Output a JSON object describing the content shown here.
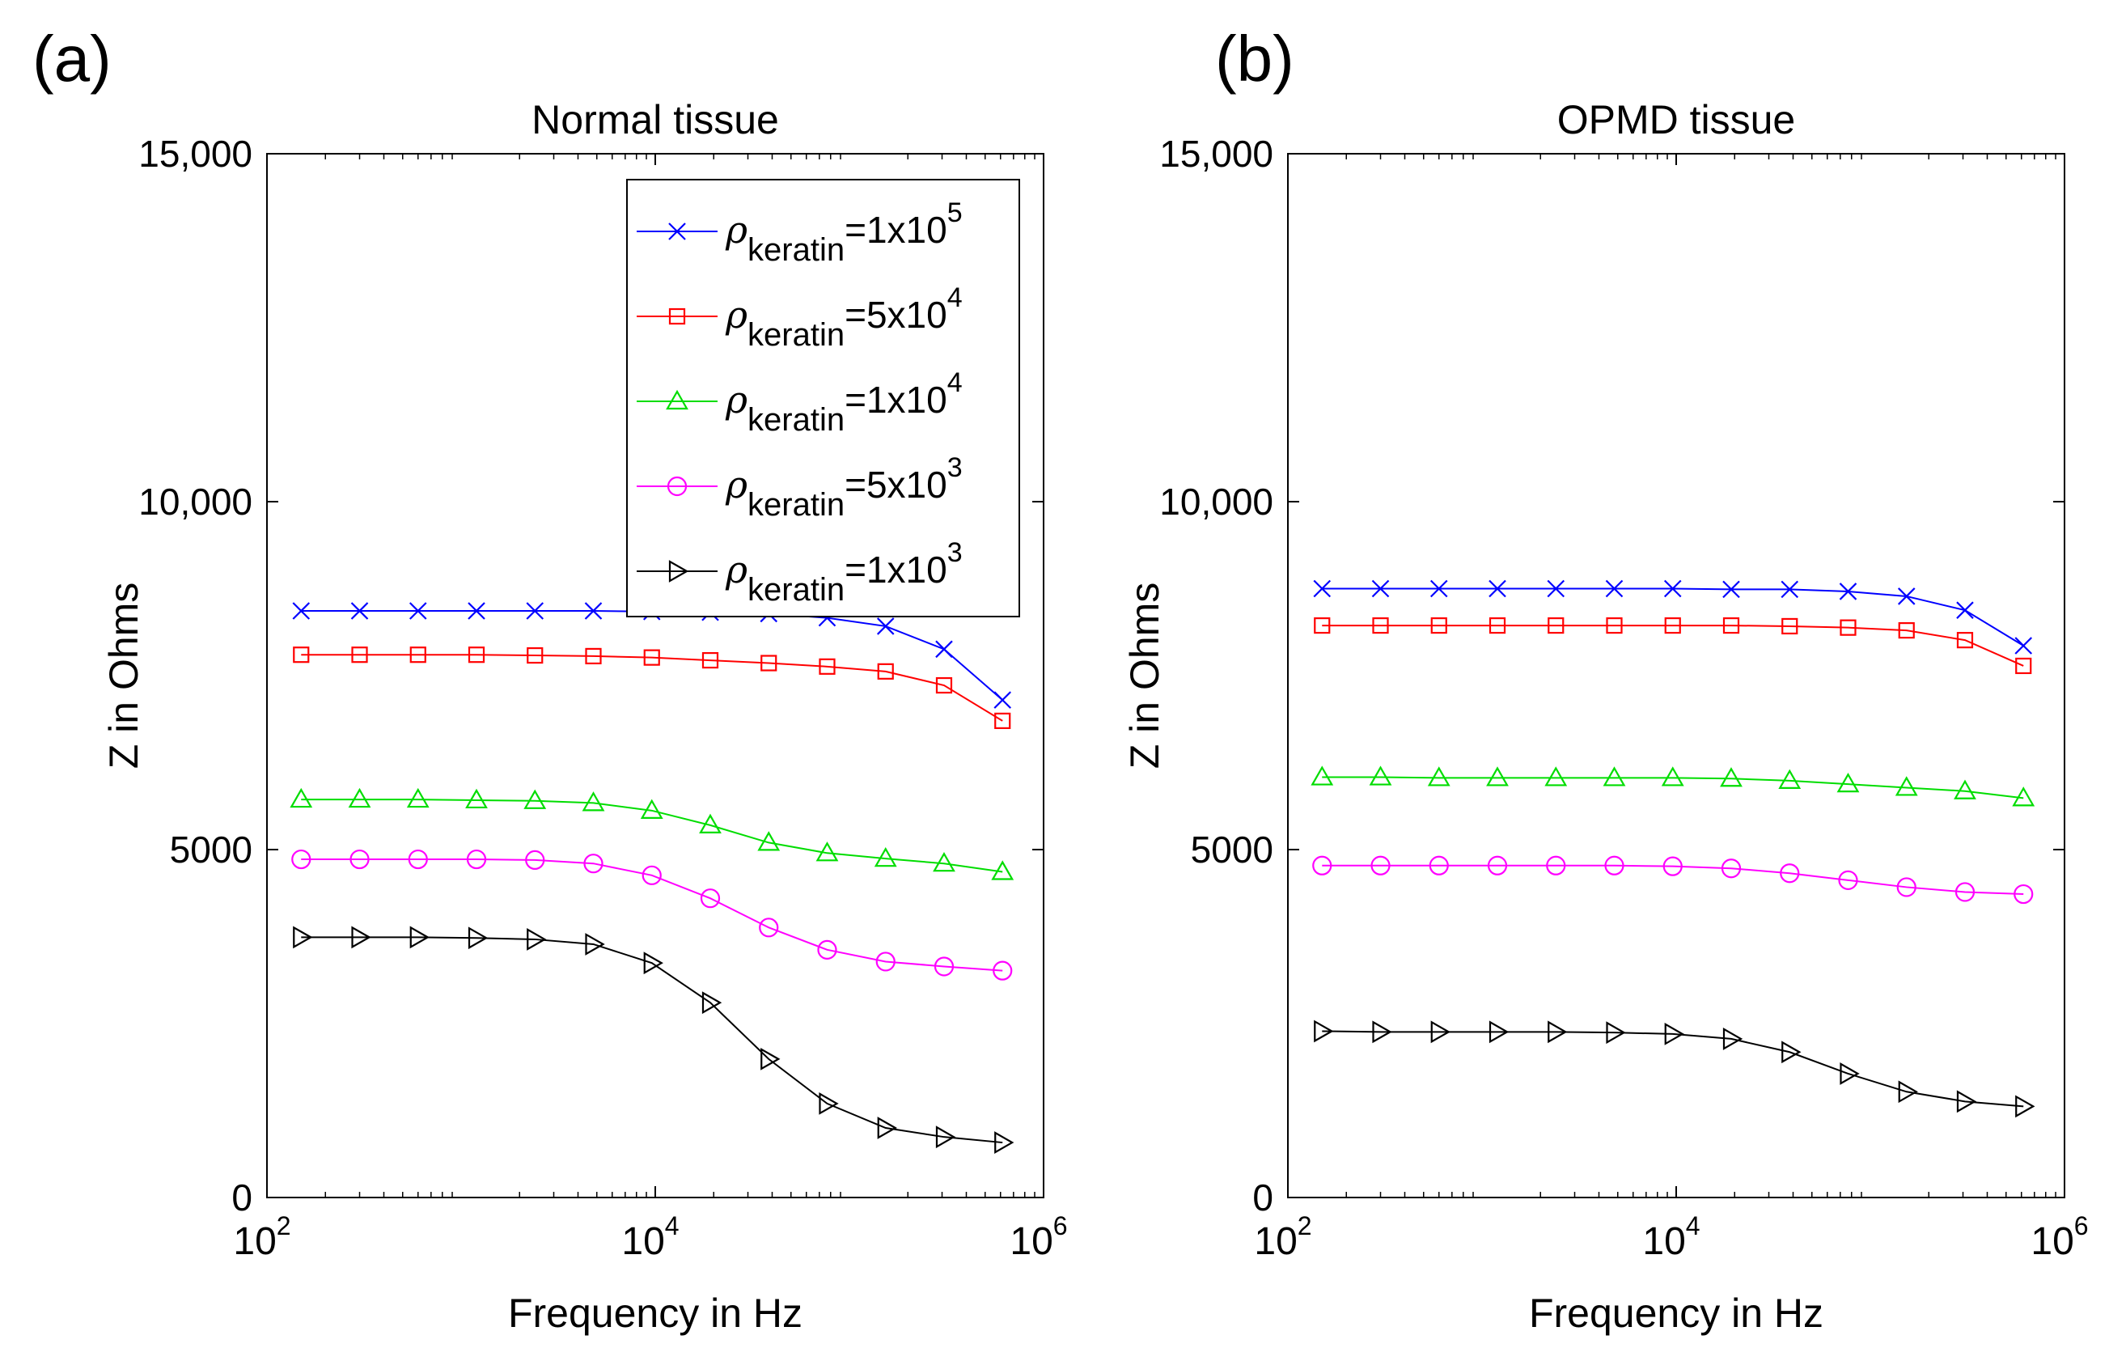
{
  "chart_data": [
    {
      "type": "line",
      "panel_label": "(a)",
      "title": "Normal tissue",
      "xlabel": "Frequency in Hz",
      "ylabel": "Z in Ohms",
      "xscale": "log",
      "xlim": [
        100,
        1000000
      ],
      "ylim": [
        0,
        15000
      ],
      "xticks": [
        {
          "value": 100,
          "base": "10",
          "exp": "2"
        },
        {
          "value": 10000,
          "base": "10",
          "exp": "4"
        },
        {
          "value": 1000000,
          "base": "10",
          "exp": "6"
        }
      ],
      "yticks": [
        {
          "value": 0,
          "label": "0"
        },
        {
          "value": 5000,
          "label": "5000"
        },
        {
          "value": 10000,
          "label": "10,000"
        },
        {
          "value": 15000,
          "label": "15,000"
        }
      ],
      "legend_position": "top-right",
      "x": [
        150,
        300,
        600,
        1200,
        2400,
        4800,
        9600,
        19200,
        38400,
        76800,
        153600,
        307200,
        614400
      ],
      "series": [
        {
          "name": "ρkeratin=1x10^5",
          "symbol": "ρ",
          "subscript": "keratin",
          "text": "=1x10",
          "superscript": "5",
          "color": "#0000ff",
          "marker": "x",
          "values": [
            8430,
            8430,
            8430,
            8430,
            8430,
            8430,
            8420,
            8410,
            8390,
            8330,
            8210,
            7880,
            7150
          ]
        },
        {
          "name": "ρkeratin=5x10^4",
          "symbol": "ρ",
          "subscript": "keratin",
          "text": "=5x10",
          "superscript": "4",
          "color": "#ff0000",
          "marker": "square",
          "values": [
            7800,
            7800,
            7800,
            7800,
            7790,
            7780,
            7760,
            7720,
            7680,
            7630,
            7560,
            7360,
            6850
          ]
        },
        {
          "name": "ρkeratin=1x10^4",
          "symbol": "ρ",
          "subscript": "keratin",
          "text": "=1x10",
          "superscript": "4",
          "color": "#00dd00",
          "marker": "triangle-up",
          "values": [
            5720,
            5720,
            5720,
            5710,
            5700,
            5670,
            5560,
            5350,
            5100,
            4950,
            4870,
            4800,
            4680
          ]
        },
        {
          "name": "ρkeratin=5x10^3",
          "symbol": "ρ",
          "subscript": "keratin",
          "text": "=5x10",
          "superscript": "3",
          "color": "#ff00ff",
          "marker": "circle",
          "values": [
            4860,
            4860,
            4860,
            4860,
            4850,
            4800,
            4630,
            4300,
            3880,
            3560,
            3390,
            3320,
            3260
          ]
        },
        {
          "name": "ρkeratin=1x10^3",
          "symbol": "ρ",
          "subscript": "keratin",
          "text": "=1x10",
          "superscript": "3",
          "color": "#000000",
          "marker": "triangle-right",
          "values": [
            3740,
            3740,
            3740,
            3730,
            3710,
            3640,
            3370,
            2800,
            1990,
            1350,
            1000,
            870,
            790
          ]
        }
      ]
    },
    {
      "type": "line",
      "panel_label": "(b)",
      "title": "OPMD tissue",
      "xlabel": "Frequency in Hz",
      "ylabel": "Z in Ohms",
      "xscale": "log",
      "xlim": [
        100,
        1000000
      ],
      "ylim": [
        0,
        15000
      ],
      "xticks": [
        {
          "value": 100,
          "base": "10",
          "exp": "2"
        },
        {
          "value": 10000,
          "base": "10",
          "exp": "4"
        },
        {
          "value": 1000000,
          "base": "10",
          "exp": "6"
        }
      ],
      "yticks": [
        {
          "value": 0,
          "label": "0"
        },
        {
          "value": 5000,
          "label": "5000"
        },
        {
          "value": 10000,
          "label": "10,000"
        },
        {
          "value": 15000,
          "label": "15,000"
        }
      ],
      "x": [
        150,
        300,
        600,
        1200,
        2400,
        4800,
        9600,
        19200,
        38400,
        76800,
        153600,
        307200,
        614400
      ],
      "series": [
        {
          "name": "ρkeratin=1x10^5",
          "color": "#0000ff",
          "marker": "x",
          "values": [
            8750,
            8750,
            8750,
            8750,
            8750,
            8750,
            8750,
            8740,
            8740,
            8710,
            8640,
            8440,
            7930
          ]
        },
        {
          "name": "ρkeratin=5x10^4",
          "color": "#ff0000",
          "marker": "square",
          "values": [
            8220,
            8220,
            8220,
            8220,
            8220,
            8220,
            8220,
            8220,
            8210,
            8190,
            8150,
            8010,
            7640
          ]
        },
        {
          "name": "ρkeratin=1x10^4",
          "color": "#00dd00",
          "marker": "triangle-up",
          "values": [
            6040,
            6040,
            6030,
            6030,
            6030,
            6030,
            6030,
            6020,
            5990,
            5940,
            5890,
            5840,
            5740
          ]
        },
        {
          "name": "ρkeratin=5x10^3",
          "color": "#ff00ff",
          "marker": "circle",
          "values": [
            4770,
            4770,
            4770,
            4770,
            4770,
            4770,
            4760,
            4730,
            4660,
            4560,
            4460,
            4390,
            4360
          ]
        },
        {
          "name": "ρkeratin=1x10^3",
          "color": "#000000",
          "marker": "triangle-right",
          "values": [
            2390,
            2380,
            2380,
            2380,
            2380,
            2370,
            2350,
            2280,
            2090,
            1780,
            1520,
            1380,
            1310
          ]
        }
      ]
    }
  ]
}
